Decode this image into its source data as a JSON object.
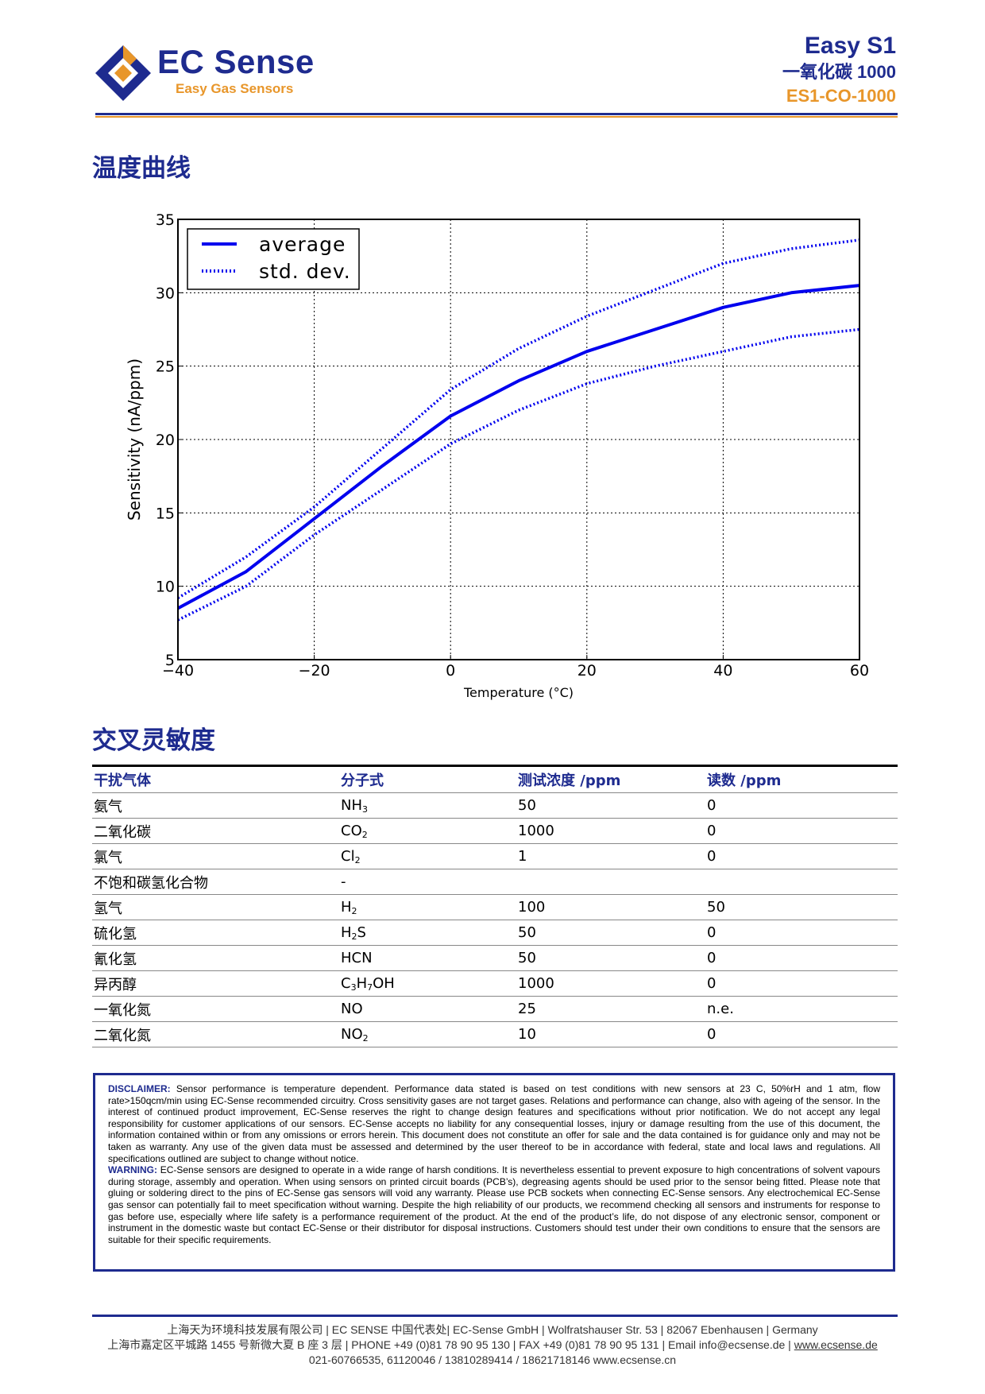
{
  "header": {
    "logo_name": "EC Sense",
    "logo_tagline": "Easy Gas Sensors",
    "product_name": "Easy S1",
    "product_gas": "一氧化碳  1000",
    "product_code": "ES1-CO-1000",
    "colors": {
      "brand_blue": "#1e2b8f",
      "brand_orange": "#e8962a"
    }
  },
  "temperature_section": {
    "title": "温度曲线"
  },
  "chart_data": {
    "type": "line",
    "title": "",
    "xlabel": "Temperature (°C)",
    "ylabel": "Sensitivity (nA/ppm)",
    "xlim": [
      -40,
      60
    ],
    "ylim": [
      5,
      35
    ],
    "x_ticks": [
      -40,
      -20,
      0,
      20,
      40,
      60
    ],
    "y_ticks": [
      5,
      10,
      15,
      20,
      25,
      30,
      35
    ],
    "x_tick_labels": [
      "−40",
      "−20",
      "0",
      "20",
      "40",
      "60"
    ],
    "y_tick_labels": [
      "5",
      "10",
      "15",
      "20",
      "25",
      "30",
      "35"
    ],
    "grid": true,
    "legend_position": "top-left",
    "x": [
      -40,
      -30,
      -20,
      -10,
      0,
      10,
      20,
      30,
      40,
      50,
      60
    ],
    "series": [
      {
        "name": "average",
        "style": "solid",
        "color": "#0000ee",
        "values": [
          8.5,
          11.0,
          14.6,
          18.2,
          21.6,
          24.0,
          26.0,
          27.5,
          29.0,
          30.0,
          30.5
        ]
      },
      {
        "name": "std. dev.",
        "style": "dotted",
        "color": "#0000ee",
        "values": [
          9.2,
          12.0,
          15.4,
          19.4,
          23.4,
          26.2,
          28.4,
          30.2,
          32.0,
          33.0,
          33.6
        ]
      },
      {
        "name": "",
        "style": "dotted",
        "color": "#0000ee",
        "values": [
          7.7,
          10.0,
          13.5,
          16.6,
          19.7,
          22.0,
          23.8,
          25.0,
          26.0,
          27.0,
          27.5
        ]
      }
    ]
  },
  "cross_section": {
    "title": "交叉灵敏度"
  },
  "cross_table": {
    "headers": [
      "干扰气体",
      "分子式",
      "测试浓度  /ppm",
      "读数  /ppm"
    ],
    "rows": [
      {
        "gas": "氨气",
        "formula": [
          "NH",
          "3",
          ""
        ],
        "conc": "50",
        "reading": "0"
      },
      {
        "gas": "二氧化碳",
        "formula": [
          "CO",
          "2",
          ""
        ],
        "conc": "1000",
        "reading": "0"
      },
      {
        "gas": "氯气",
        "formula": [
          "Cl",
          "2",
          ""
        ],
        "conc": "1",
        "reading": "0"
      },
      {
        "gas": "不饱和碳氢化合物",
        "formula": [
          "-",
          "",
          ""
        ],
        "conc": "",
        "reading": ""
      },
      {
        "gas": "氢气",
        "formula": [
          "H",
          "2",
          ""
        ],
        "conc": "100",
        "reading": "50"
      },
      {
        "gas": "硫化氢",
        "formula": [
          "H",
          "2",
          "S"
        ],
        "conc": "50",
        "reading": "0"
      },
      {
        "gas": "氰化氢",
        "formula": [
          "HCN",
          "",
          ""
        ],
        "conc": "50",
        "reading": "0"
      },
      {
        "gas": "异丙醇",
        "formula": [
          "C",
          "3",
          "H",
          "7",
          "OH"
        ],
        "conc": "1000",
        "reading": "0"
      },
      {
        "gas": "一氧化氮",
        "formula": [
          "NO",
          "",
          ""
        ],
        "conc": "25",
        "reading": "n.e."
      },
      {
        "gas": "二氧化氮",
        "formula": [
          "NO",
          "2",
          ""
        ],
        "conc": "10",
        "reading": "0"
      }
    ]
  },
  "disclaimer": {
    "label": "DISCLAIMER:",
    "text": " Sensor performance is temperature dependent. Performance data stated is based on test conditions with new sensors at 23 C, 50%rH and 1 atm, flow rate>150qcm/min using EC-Sense recommended circuitry. Cross sensitivity gases are not target gases. Relations and performance can change, also with ageing of the sensor. In the interest of continued product improvement, EC-Sense reserves the right to change design features and specifications without prior notification. We do not accept any legal responsibility for customer applications of our sensors. EC-Sense accepts no liability for any consequential losses, injury or damage resulting from the use of this document, the information contained within or from any omissions or errors herein. This document does not constitute an offer for sale and the data contained is for guidance only and may not be taken as warranty. Any use of the given data must be assessed and determined by the user thereof to be in accordance with federal, state and local laws and regulations. All specifications outlined are subject to change without notice.",
    "warning_label": "WARNING:",
    "warning_text": " EC-Sense sensors are designed to operate in a wide range of harsh conditions. It is nevertheless essential to prevent exposure to high concentrations of solvent vapours during storage, assembly and operation. When using sensors on printed circuit boards (PCB’s), degreasing agents should be used prior to the sensor being fitted. Please note that gluing or soldering direct to the pins of EC-Sense gas sensors will void any warranty. Please use PCB sockets when connecting EC-Sense sensors. Any electrochemical EC-Sense gas sensor can potentially fail to meet specification without warning. Despite the high reliability of our products, we recommend checking all sensors and instruments for response to gas before use, especially where life safety is a performance requirement of the product. At the end of the product’s life, do not dispose of any electronic sensor, component or instrument in the domestic waste but contact EC-Sense or their distributor for disposal instructions. Customers should test under their own conditions to ensure that the sensors are suitable for their specific requirements."
  },
  "footer": {
    "line1": "上海天为环境科技发展有限公司 | EC SENSE  中国代表处| EC-Sense GmbH | Wolfratshauser Str. 53 | 82067 Ebenhausen | Germany",
    "line2_main": "上海市嘉定区平城路 1455 号新微大夏 B 座 3 层 | PHONE +49 (0)81 78 90 95 130 | FAX +49 (0)81 78 90 95 131 | Email info@ecsense.de | ",
    "line2_link": "www.ecsense.de",
    "line3": "021-60766535, 61120046 / 13810289414 / 18621718146    www.ecsense.cn"
  }
}
